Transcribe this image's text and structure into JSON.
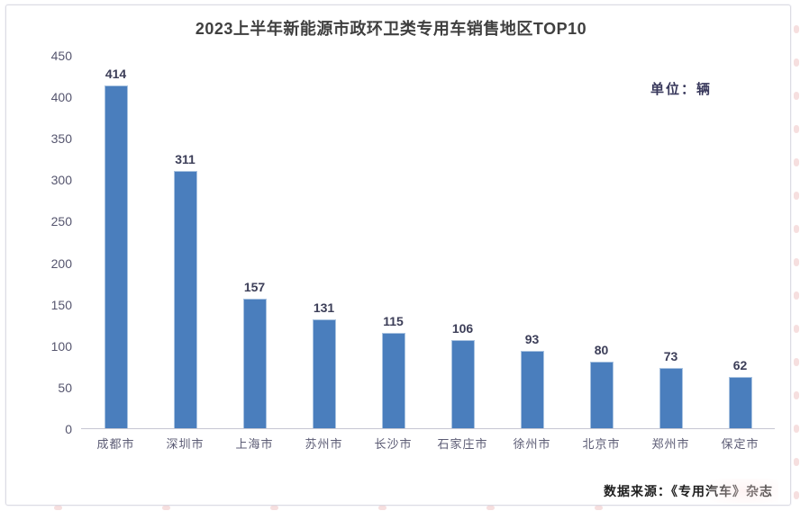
{
  "title": "2023上半年新能源市政环卫类专用车销售地区TOP10",
  "unit_label": "单位：辆",
  "source_label": "数据来源：《专用汽车》杂志",
  "colors": {
    "bar": "#4a7ebd",
    "bar_edge": "#a8c2e0",
    "title_text": "#3f3f3f",
    "value_label": "#3c3e58",
    "axis_label": "#55556e",
    "category_label": "#5b5b74",
    "axis_line": "#c7c7d2",
    "frame_border": "#dcdce4",
    "unit_label": "#39395c",
    "source_text": "#1e1e1e"
  },
  "chart_data": {
    "type": "bar",
    "title": "2023上半年新能源市政环卫类专用车销售地区TOP10",
    "categories": [
      "成都市",
      "深圳市",
      "上海市",
      "苏州市",
      "长沙市",
      "石家庄市",
      "徐州市",
      "北京市",
      "郑州市",
      "保定市"
    ],
    "values": [
      414,
      311,
      157,
      131,
      115,
      106,
      93,
      80,
      73,
      62
    ],
    "xlabel": "",
    "ylabel": "",
    "unit": "辆",
    "ylim": [
      0,
      450
    ],
    "yticks": [
      0,
      50,
      100,
      150,
      200,
      250,
      300,
      350,
      400,
      450
    ],
    "grid": false,
    "legend": false,
    "data_labels": true,
    "source": "数据来源：《专用汽车》杂志"
  }
}
